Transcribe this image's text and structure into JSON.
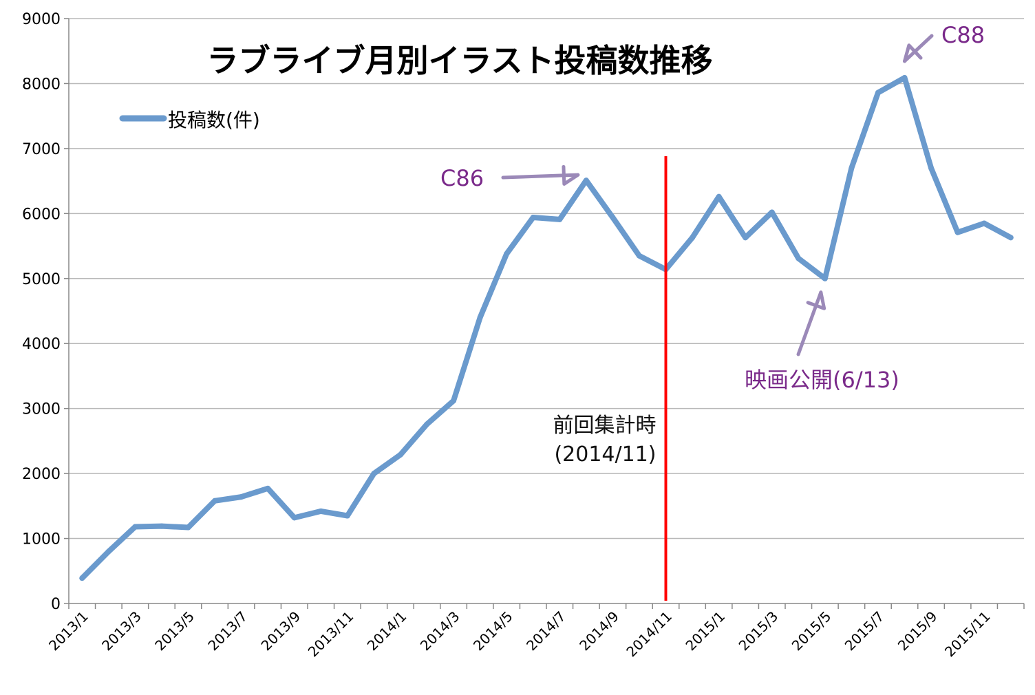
{
  "chart_data": {
    "type": "line",
    "title": "ラブライブ月別イラスト投稿数推移",
    "xlabel": "",
    "ylabel": "",
    "ylim": [
      0,
      9000
    ],
    "yticks": [
      0,
      1000,
      2000,
      3000,
      4000,
      5000,
      6000,
      7000,
      8000,
      9000
    ],
    "categories": [
      "2013/1",
      "2013/2",
      "2013/3",
      "2013/4",
      "2013/5",
      "2013/6",
      "2013/7",
      "2013/8",
      "2013/9",
      "2013/10",
      "2013/11",
      "2013/12",
      "2014/1",
      "2014/2",
      "2014/3",
      "2014/4",
      "2014/5",
      "2014/6",
      "2014/7",
      "2014/8",
      "2014/9",
      "2014/10",
      "2014/11",
      "2014/12",
      "2015/1",
      "2015/2",
      "2015/3",
      "2015/4",
      "2015/5",
      "2015/6",
      "2015/7",
      "2015/8",
      "2015/9",
      "2015/10",
      "2015/11",
      "2015/12"
    ],
    "xtick_labels": [
      "2013/1",
      "2013/3",
      "2013/5",
      "2013/7",
      "2013/9",
      "2013/11",
      "2014/1",
      "2014/3",
      "2014/5",
      "2014/7",
      "2014/9",
      "2014/11",
      "2015/1",
      "2015/3",
      "2015/5",
      "2015/7",
      "2015/9",
      "2015/11"
    ],
    "series": [
      {
        "name": "投稿数(件)",
        "color": "#6a9acd",
        "values": [
          390,
          800,
          1180,
          1190,
          1170,
          1580,
          1640,
          1770,
          1320,
          1420,
          1350,
          2000,
          2290,
          2760,
          3120,
          4400,
          5380,
          5940,
          5910,
          6510,
          5940,
          5350,
          5140,
          5630,
          6260,
          5630,
          6020,
          5310,
          5000,
          6700,
          7860,
          8090,
          6700,
          5710,
          5850,
          5630
        ]
      }
    ],
    "legend": "top-left",
    "grid": true,
    "annotations": [
      {
        "text": "C86",
        "target": "2014/8",
        "color": "#7a2a8a"
      },
      {
        "text": "C88",
        "target": "2015/8",
        "color": "#7a2a8a"
      },
      {
        "text": "映画公開(6/13)",
        "target": "2015/5",
        "color": "#7a2a8a"
      },
      {
        "text_line1": "前回集計時",
        "text_line2": "(2014/11)",
        "target": "2014/11",
        "line_color": "#ff0000"
      }
    ]
  }
}
